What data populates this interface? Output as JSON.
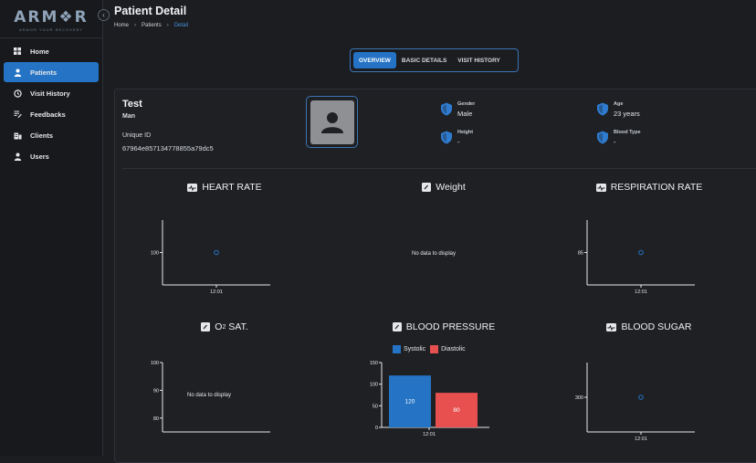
{
  "app": {
    "logo_text": "ARM❖R",
    "logo_tagline": "ARMOR YOUR RECOVERY"
  },
  "sidebar": {
    "items": [
      {
        "label": "Home",
        "icon": "grid-icon"
      },
      {
        "label": "Patients",
        "icon": "person-icon",
        "active": true
      },
      {
        "label": "Visit History",
        "icon": "history-icon"
      },
      {
        "label": "Feedbacks",
        "icon": "feedback-icon"
      },
      {
        "label": "Clients",
        "icon": "clients-icon"
      },
      {
        "label": "Users",
        "icon": "user-icon"
      }
    ]
  },
  "header": {
    "title": "Patient Detail",
    "breadcrumb": [
      "Home",
      "Patients",
      "Detail"
    ]
  },
  "tabs": [
    {
      "label": "OVERVIEW",
      "active": true
    },
    {
      "label": "BASIC DETAILS",
      "active": false
    },
    {
      "label": "VISIT HISTORY",
      "active": false
    }
  ],
  "patient": {
    "name": "Test",
    "gender_short": "Man",
    "uid_label": "Unique ID",
    "uid": "67964e857134778855a79dc5",
    "gender_label": "Gender",
    "gender_value": "Male",
    "height_label": "Height",
    "height_value": "-",
    "age_label": "Age",
    "age_value": "23 years",
    "blood_type_label": "Blood Type",
    "blood_type_value": "-"
  },
  "colors": {
    "accent": "#2473c5",
    "systolic": "#2473c5",
    "diastolic": "#e85050",
    "point": "#2473c5"
  },
  "no_data_text": "No data to display",
  "charts": {
    "heart_rate": {
      "title": "HEART RATE"
    },
    "weight": {
      "title": "Weight"
    },
    "respiration": {
      "title": "RESPIRATION RATE"
    },
    "o2": {
      "title_main": "O",
      "title_sup": "2",
      "title_rest": " SAT."
    },
    "blood_pressure": {
      "title": "BLOOD PRESSURE",
      "legend_systolic": "Systolic",
      "legend_diastolic": "Diastolic"
    },
    "blood_sugar": {
      "title": "BLOOD SUGAR"
    }
  },
  "chart_data": [
    {
      "id": "heart_rate",
      "type": "scatter",
      "title": "HEART RATE",
      "x": [
        "12:01"
      ],
      "y": [
        100
      ],
      "yticks": [
        100
      ]
    },
    {
      "id": "weight",
      "type": "scatter",
      "title": "Weight",
      "x": [],
      "y": []
    },
    {
      "id": "respiration",
      "type": "scatter",
      "title": "RESPIRATION RATE",
      "x": [
        "12:01"
      ],
      "y": [
        85
      ],
      "yticks": [
        85
      ]
    },
    {
      "id": "o2",
      "type": "scatter",
      "title": "O2 SAT.",
      "x": [],
      "y": [],
      "yticks": [
        100,
        90,
        80
      ],
      "ylim": [
        75,
        100
      ]
    },
    {
      "id": "blood_pressure",
      "type": "bar",
      "title": "BLOOD PRESSURE",
      "categories": [
        "12:01"
      ],
      "series": [
        {
          "name": "Systolic",
          "values": [
            120
          ]
        },
        {
          "name": "Diastolic",
          "values": [
            80
          ]
        }
      ],
      "yticks": [
        150,
        100,
        50,
        0
      ],
      "ylim": [
        0,
        150
      ]
    },
    {
      "id": "blood_sugar",
      "type": "scatter",
      "title": "BLOOD SUGAR",
      "x": [
        "12:01"
      ],
      "y": [
        300
      ],
      "yticks": [
        300
      ]
    }
  ]
}
